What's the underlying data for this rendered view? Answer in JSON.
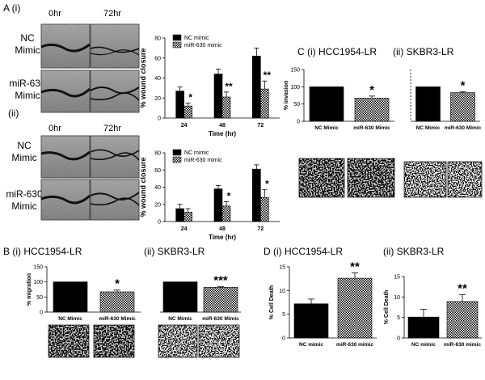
{
  "labels": {
    "A1": "A (i)",
    "A2": "(ii)",
    "B1": "B (i) HCC1954-LR",
    "B2": "(ii)  SKBR3-LR",
    "C1": "C (i) HCC1954-LR",
    "C2": "(ii)  SKBR3-LR",
    "D1": "D (i)  HCC1954-LR",
    "D2": "(ii) SKBR3-LR"
  },
  "wound_panel": {
    "time_0": "0hr",
    "time_72": "72hr",
    "rows": [
      {
        "line1": "NC",
        "line2": "Mimic"
      },
      {
        "line1": "miR-630",
        "line2": "Mimic"
      }
    ]
  },
  "chart_data": [
    {
      "id": "A_i",
      "type": "bar",
      "categories": [
        "24",
        "48",
        "72"
      ],
      "series": [
        {
          "name": "NC mimic",
          "values": [
            27,
            44,
            62
          ],
          "errors": [
            4,
            5,
            8
          ],
          "pattern": "solid"
        },
        {
          "name": "miR-630 mimic",
          "values": [
            12,
            21,
            29
          ],
          "errors": [
            3,
            5,
            8
          ],
          "pattern": "check"
        }
      ],
      "significance": [
        "*",
        "**",
        "**"
      ],
      "xlabel": "Time (hr)",
      "ylabel": "% wound closure",
      "ylim": [
        0,
        80
      ],
      "yticks": [
        0,
        20,
        40,
        60,
        80
      ],
      "legend": "top-left"
    },
    {
      "id": "A_ii",
      "type": "bar",
      "categories": [
        "24",
        "48",
        "72"
      ],
      "series": [
        {
          "name": "NC mimic",
          "values": [
            15,
            38,
            61
          ],
          "errors": [
            5,
            4,
            5
          ],
          "pattern": "solid"
        },
        {
          "name": "miR-630 mimic",
          "values": [
            11,
            18,
            28
          ],
          "errors": [
            4,
            5,
            9
          ],
          "pattern": "check"
        }
      ],
      "significance": [
        "",
        "*",
        "*"
      ],
      "xlabel": "Time (hr)",
      "ylabel": "% wound closure",
      "ylim": [
        0,
        80
      ],
      "yticks": [
        0,
        20,
        40,
        60,
        80
      ],
      "legend": "top-left"
    },
    {
      "id": "B_i",
      "type": "bar",
      "categories": [
        "NC Mimic",
        "miR-630 Mimic"
      ],
      "values": [
        100,
        67
      ],
      "errors": [
        0,
        6
      ],
      "significance": [
        "",
        "*"
      ],
      "ylabel": "% migration",
      "ylim": [
        0,
        150
      ],
      "yticks": [
        0,
        50,
        100,
        150
      ]
    },
    {
      "id": "B_ii",
      "type": "bar",
      "categories": [
        "NC Mimic",
        "miR-630 Mimic"
      ],
      "values": [
        100,
        82
      ],
      "errors": [
        0,
        2
      ],
      "significance": [
        "",
        "***"
      ],
      "ylabel": "",
      "ylim": [
        0,
        150
      ],
      "yticks": []
    },
    {
      "id": "C_i",
      "type": "bar",
      "categories": [
        "NC Mimic",
        "miR-630 Mimic"
      ],
      "values": [
        100,
        67
      ],
      "errors": [
        0,
        6
      ],
      "significance": [
        "",
        "*"
      ],
      "ylabel": "% invasion",
      "ylim": [
        0,
        150
      ],
      "yticks": [
        0,
        50,
        100,
        150
      ]
    },
    {
      "id": "C_ii",
      "type": "bar",
      "categories": [
        "NC Mimic",
        "miR-630 Mimic"
      ],
      "values": [
        100,
        83
      ],
      "errors": [
        0,
        3
      ],
      "significance": [
        "",
        "*"
      ],
      "ylabel": "",
      "ylim": [
        0,
        150
      ],
      "yticks": []
    },
    {
      "id": "D_i",
      "type": "bar",
      "categories": [
        "NC mimic",
        "miR-630 mimic"
      ],
      "values": [
        7.2,
        12.6
      ],
      "errors": [
        1.0,
        1.1
      ],
      "significance": [
        "",
        "**"
      ],
      "ylabel": "% Cell Death",
      "ylim": [
        0,
        15
      ],
      "yticks": [
        0,
        5,
        10,
        15
      ]
    },
    {
      "id": "D_ii",
      "type": "bar",
      "categories": [
        "NC mimic",
        "miR-630 mimic"
      ],
      "values": [
        5.1,
        8.9
      ],
      "errors": [
        1.9,
        1.7
      ],
      "significance": [
        "",
        "**"
      ],
      "ylabel": "% Cell Death",
      "ylim": [
        0,
        15
      ],
      "yticks": [
        0,
        5,
        10,
        15
      ]
    }
  ]
}
